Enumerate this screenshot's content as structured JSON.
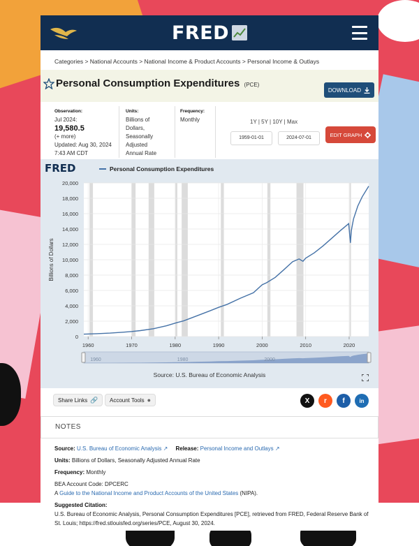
{
  "header": {
    "brand": "FRED",
    "logo_icon": "eagle-icon",
    "menu_icon": "hamburger-icon"
  },
  "breadcrumb": "Categories > National Accounts > National Income & Product Accounts > Personal Income & Outlays",
  "series": {
    "title": "Personal Consumption Expenditures",
    "code": "(PCE)",
    "download_label": "DOWNLOAD"
  },
  "meta": {
    "observation_label": "Observation:",
    "observation_period": "Jul 2024:",
    "observation_value": "19,580.5",
    "observation_more": "(+ more)",
    "updated_label": "Updated:",
    "updated_date": "Aug 30, 2024",
    "updated_time": "7:43 AM CDT",
    "units_label": "Units:",
    "units_line1": "Billions of",
    "units_line2": "Dollars,",
    "units_line3": "Seasonally",
    "units_line4": "Adjusted",
    "units_line5": "Annual Rate",
    "frequency_label": "Frequency:",
    "frequency_value": "Monthly",
    "range_options": [
      "1Y",
      "5Y",
      "10Y",
      "Max"
    ],
    "start_date": "1959-01-01",
    "end_date": "2024-07-01",
    "edit_label": "EDIT GRAPH"
  },
  "chart_data": {
    "type": "line",
    "title": "",
    "legend": [
      "Personal Consumption Expenditures"
    ],
    "ylabel": "Billions of Dollars",
    "xlabel": "",
    "xlim": [
      1959,
      2024.5
    ],
    "ylim": [
      0,
      20000
    ],
    "x_ticks": [
      "1960",
      "1970",
      "1980",
      "1990",
      "2000",
      "2010",
      "2020"
    ],
    "y_ticks": [
      "0",
      "2,000",
      "4,000",
      "6,000",
      "8,000",
      "10,000",
      "12,000",
      "14,000",
      "16,000",
      "18,000",
      "20,000"
    ],
    "recessions": [
      [
        1960.3,
        1961.1
      ],
      [
        1969.9,
        1970.9
      ],
      [
        1973.9,
        1975.2
      ],
      [
        1980.0,
        1980.5
      ],
      [
        1981.5,
        1982.9
      ],
      [
        1990.5,
        1991.2
      ],
      [
        2001.2,
        2001.9
      ],
      [
        2007.9,
        2009.5
      ],
      [
        2020.1,
        2020.3
      ]
    ],
    "series": [
      {
        "name": "Personal Consumption Expenditures",
        "x": [
          1959,
          1962,
          1965,
          1968,
          1970,
          1972,
          1975,
          1978,
          1980,
          1982,
          1985,
          1988,
          1990,
          1992,
          1995,
          1998,
          2000,
          2001,
          2003,
          2005,
          2007,
          2008.5,
          2009.4,
          2010,
          2012,
          2014,
          2016,
          2018,
          2019.9,
          2020.3,
          2020.5,
          2021,
          2022,
          2023,
          2024.5
        ],
        "values": [
          310,
          370,
          450,
          560,
          650,
          770,
          1020,
          1400,
          1750,
          2050,
          2700,
          3350,
          3800,
          4200,
          4990,
          5700,
          6750,
          7000,
          7700,
          8700,
          9750,
          10100,
          9800,
          10200,
          10900,
          11800,
          12800,
          13800,
          14700,
          12200,
          13800,
          15300,
          17000,
          18200,
          19580
        ]
      }
    ],
    "source": "Source: U.S. Bureau of Economic Analysis",
    "navigator_labels": [
      "1960",
      "1980",
      "2000"
    ],
    "grid": true
  },
  "share": {
    "share_links": "Share Links",
    "account_tools": "Account Tools",
    "social": [
      {
        "name": "x-icon",
        "glyph": "X",
        "color": "#111111"
      },
      {
        "name": "reddit-icon",
        "glyph": "r",
        "color": "#ff5a1f"
      },
      {
        "name": "facebook-icon",
        "glyph": "f",
        "color": "#1d5ea8"
      },
      {
        "name": "linkedin-icon",
        "glyph": "in",
        "color": "#1f6db3"
      }
    ]
  },
  "notes": {
    "heading": "NOTES",
    "source_label": "Source:",
    "source_value": "U.S. Bureau of Economic Analysis",
    "release_label": "Release:",
    "release_value": "Personal Income and Outlays",
    "units_label": "Units:",
    "units_value": "Billions of Dollars, Seasonally Adjusted Annual Rate",
    "frequency_label": "Frequency:",
    "frequency_value": "Monthly",
    "bea_code": "BEA Account Code: DPCERC",
    "guide_prefix": "A ",
    "guide_link": "Guide to the National Income and Product Accounts of the United States",
    "guide_suffix": " (NIPA).",
    "citation_label": "Suggested Citation:",
    "citation_text": "U.S. Bureau of Economic Analysis, Personal Consumption Expenditures [PCE], retrieved from FRED, Federal Reserve Bank of St. Louis; https://fred.stlouisfed.org/series/PCE, August 30, 2024."
  }
}
